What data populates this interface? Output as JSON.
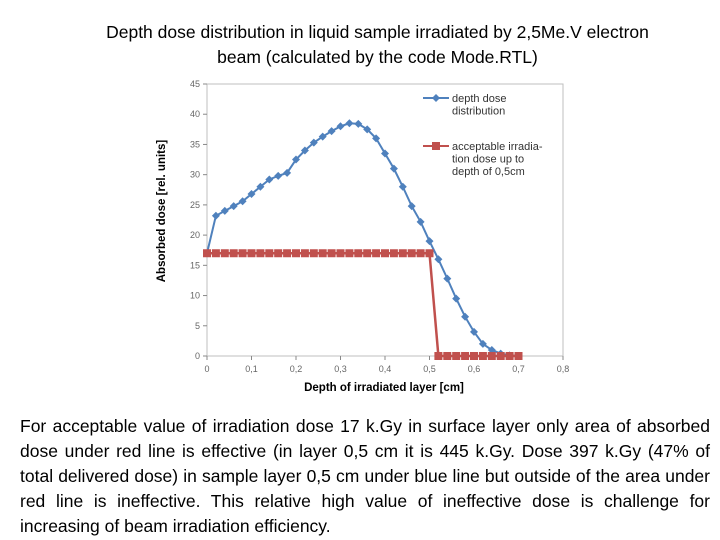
{
  "title_line1": "Depth dose distribution in liquid sample irradiated by 2,5Me.V electron",
  "title_line2": "beam (calculated by the code Mode.RTL)",
  "caption": "For acceptable value of irradiation dose 17 k.Gy in surface layer only area of absorbed dose under red line is effective  (in layer 0,5 cm it is 445 k.Gy. Dose 397 k.Gy (47% of total delivered dose) in sample layer 0,5 cm under blue line but outside of the area under red line is ineffective. This relative high value of ineffective dose is challenge for increasing of beam irradiation efficiency.",
  "chart_data": {
    "type": "line",
    "xlabel": "Depth of irradiated layer [cm]",
    "ylabel": "Absorbed dose [rel. units]",
    "xlim": [
      0,
      0.8
    ],
    "ylim": [
      0,
      45
    ],
    "xticks": [
      0,
      0.1,
      0.2,
      0.3,
      0.4,
      0.5,
      0.6,
      0.7,
      0.8
    ],
    "xtick_labels": [
      "0",
      "0,1",
      "0,2",
      "0,3",
      "0,4",
      "0,5",
      "0,6",
      "0,7",
      "0,8"
    ],
    "yticks": [
      0,
      5,
      10,
      15,
      20,
      25,
      30,
      35,
      40,
      45
    ],
    "ytick_labels": [
      "0",
      "5",
      "10",
      "15",
      "20",
      "25",
      "30",
      "35",
      "40",
      "45"
    ],
    "series": [
      {
        "name": "depth dose distribution",
        "legend_lines": [
          "depth dose",
          "distribution"
        ],
        "color": "#4f81bd",
        "marker": "diamond",
        "x": [
          0,
          0.02,
          0.04,
          0.06,
          0.08,
          0.1,
          0.12,
          0.14,
          0.16,
          0.18,
          0.2,
          0.22,
          0.24,
          0.26,
          0.28,
          0.3,
          0.32,
          0.34,
          0.36,
          0.38,
          0.4,
          0.42,
          0.44,
          0.46,
          0.48,
          0.5,
          0.52,
          0.54,
          0.56,
          0.58,
          0.6,
          0.62,
          0.64,
          0.66,
          0.68,
          0.7
        ],
        "y": [
          17,
          23.2,
          24.0,
          24.8,
          25.6,
          26.8,
          28.0,
          29.2,
          29.8,
          30.3,
          32.5,
          34.0,
          35.3,
          36.3,
          37.2,
          38.0,
          38.5,
          38.4,
          37.5,
          36.0,
          33.5,
          31.0,
          28.0,
          24.8,
          22.2,
          19.0,
          16.0,
          12.8,
          9.5,
          6.5,
          4.0,
          2.0,
          1.0,
          0.4,
          0.1,
          0.0
        ]
      },
      {
        "name": "acceptable irradiation dose up to depth of 0,5cm",
        "legend_lines": [
          "acceptable irradia-",
          "tion dose up to",
          "depth of 0,5cm"
        ],
        "color": "#c0504d",
        "marker": "square",
        "x": [
          0,
          0.02,
          0.04,
          0.06,
          0.08,
          0.1,
          0.12,
          0.14,
          0.16,
          0.18,
          0.2,
          0.22,
          0.24,
          0.26,
          0.28,
          0.3,
          0.32,
          0.34,
          0.36,
          0.38,
          0.4,
          0.42,
          0.44,
          0.46,
          0.48,
          0.5,
          0.52,
          0.54,
          0.56,
          0.58,
          0.6,
          0.62,
          0.64,
          0.66,
          0.68,
          0.7
        ],
        "y": [
          17,
          17,
          17,
          17,
          17,
          17,
          17,
          17,
          17,
          17,
          17,
          17,
          17,
          17,
          17,
          17,
          17,
          17,
          17,
          17,
          17,
          17,
          17,
          17,
          17,
          17,
          0,
          0,
          0,
          0,
          0,
          0,
          0,
          0,
          0,
          0
        ]
      }
    ]
  }
}
